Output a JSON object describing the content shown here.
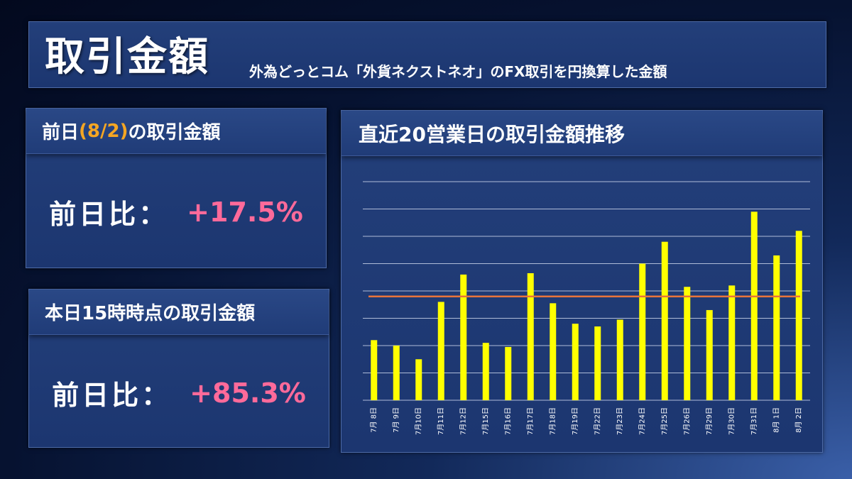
{
  "header": {
    "title": "取引金額",
    "subtitle": "外為どっとコム「外貨ネクストネオ」のFX取引を円換算した金額"
  },
  "prev_day_panel": {
    "title_prefix": "前日",
    "title_date": "(8/2)",
    "title_suffix": "の取引金額",
    "ratio_label": "前日比：",
    "ratio_value": "+17.5%"
  },
  "today_panel": {
    "title": "本日15時時点の取引金額",
    "ratio_label": "前日比：",
    "ratio_value": "+85.3%"
  },
  "colors": {
    "bar": "#ffff00",
    "average_line": "#e8743b",
    "gridline": "#c9d3ea",
    "ratio_value": "#ff6a9a",
    "date_accent": "#f5a623"
  },
  "chart_data": {
    "type": "bar",
    "title": "直近20営業日の取引金額推移",
    "categories": [
      "7月 8日",
      "7月 9日",
      "7月10日",
      "7月11日",
      "7月12日",
      "7月15日",
      "7月16日",
      "7月17日",
      "7月18日",
      "7月19日",
      "7月22日",
      "7月23日",
      "7月24日",
      "7月25日",
      "7月26日",
      "7月29日",
      "7月30日",
      "7月31日",
      "8月 1日",
      "8月 2日"
    ],
    "values": [
      2.2,
      2.0,
      1.5,
      3.6,
      4.6,
      2.1,
      1.95,
      4.65,
      3.55,
      2.8,
      2.7,
      2.95,
      5.0,
      5.8,
      4.15,
      3.3,
      4.2,
      6.9,
      5.3,
      6.2
    ],
    "average": 3.8,
    "ylim": [
      0,
      8
    ],
    "y_gridlines": 8,
    "grid": true,
    "legend": "none",
    "xlabel": "",
    "ylabel": ""
  }
}
